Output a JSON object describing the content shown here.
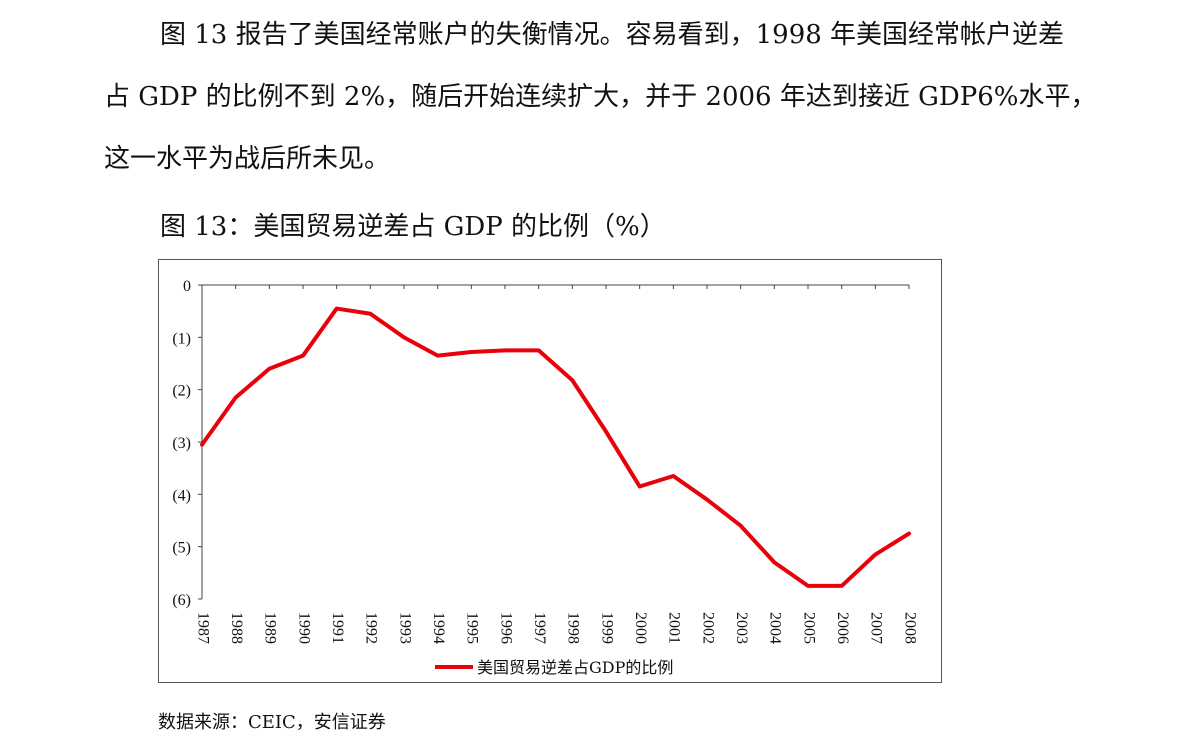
{
  "paragraph": {
    "line1": "图 13 报告了美国经常账户的失衡情况。容易看到，1998 年美国经常帐户逆差",
    "line2": "占 GDP 的比例不到 2%，随后开始连续扩大，并于 2006 年达到接近 GDP6%水平，",
    "line3": "这一水平为战后所未见。"
  },
  "figure_title": "图 13：美国贸易逆差占 GDP 的比例（%）",
  "source": "数据来源：CEIC，安信证券",
  "chart_data": {
    "type": "line",
    "title": "",
    "xlabel": "",
    "ylabel": "",
    "x": [
      "1987",
      "1988",
      "1989",
      "1990",
      "1991",
      "1992",
      "1993",
      "1994",
      "1995",
      "1996",
      "1997",
      "1998",
      "1999",
      "2000",
      "2001",
      "2002",
      "2003",
      "2004",
      "2005",
      "2006",
      "2007",
      "2008"
    ],
    "y_tick_values": [
      0,
      -1,
      -2,
      -3,
      -4,
      -5,
      -6
    ],
    "y_tick_labels": [
      "0",
      "(1)",
      "(2)",
      "(3)",
      "(4)",
      "(5)",
      "(6)"
    ],
    "ylim": [
      -6,
      0
    ],
    "grid": false,
    "legend_position": "bottom",
    "series": [
      {
        "name": "美国贸易逆差占GDP的比例",
        "color": "#e8000b",
        "values": [
          -3.05,
          -2.15,
          -1.6,
          -1.35,
          -0.45,
          -0.55,
          -1.0,
          -1.35,
          -1.28,
          -1.25,
          -1.25,
          -1.82,
          -2.8,
          -3.85,
          -3.65,
          -4.1,
          -4.6,
          -5.3,
          -5.75,
          -5.75,
          -5.15,
          -4.75
        ]
      }
    ]
  }
}
